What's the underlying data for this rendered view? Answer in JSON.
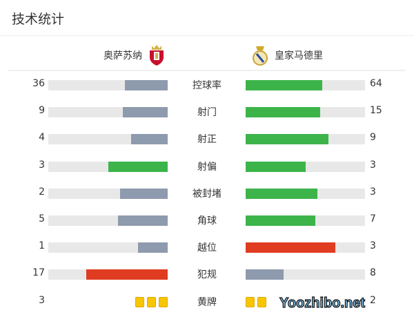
{
  "title": "技术统计",
  "home": {
    "name": "奥萨苏纳",
    "logo": "osasuna-crest"
  },
  "away": {
    "name": "皇家马德里",
    "logo": "real-madrid-crest"
  },
  "colors": {
    "gray": "#8e9aad",
    "green": "#3cb44a",
    "red": "#e03c22",
    "track": "#e8e8e8",
    "card": "#f7c600"
  },
  "stats": [
    {
      "label": "控球率",
      "home": 36,
      "away": 64,
      "home_color": "gray",
      "away_color": "green"
    },
    {
      "label": "射门",
      "home": 9,
      "away": 15,
      "home_color": "gray",
      "away_color": "green"
    },
    {
      "label": "射正",
      "home": 4,
      "away": 9,
      "home_color": "gray",
      "away_color": "green"
    },
    {
      "label": "射偏",
      "home": 3,
      "away": 3,
      "home_color": "green",
      "away_color": "green"
    },
    {
      "label": "被封堵",
      "home": 2,
      "away": 3,
      "home_color": "gray",
      "away_color": "green"
    },
    {
      "label": "角球",
      "home": 5,
      "away": 7,
      "home_color": "gray",
      "away_color": "green"
    },
    {
      "label": "越位",
      "home": 1,
      "away": 3,
      "home_color": "gray",
      "away_color": "red"
    },
    {
      "label": "犯规",
      "home": 17,
      "away": 8,
      "home_color": "red",
      "away_color": "gray"
    }
  ],
  "cards": {
    "label": "黄牌",
    "home": 3,
    "away": 2
  },
  "watermark": "Yoozhibo.net"
}
